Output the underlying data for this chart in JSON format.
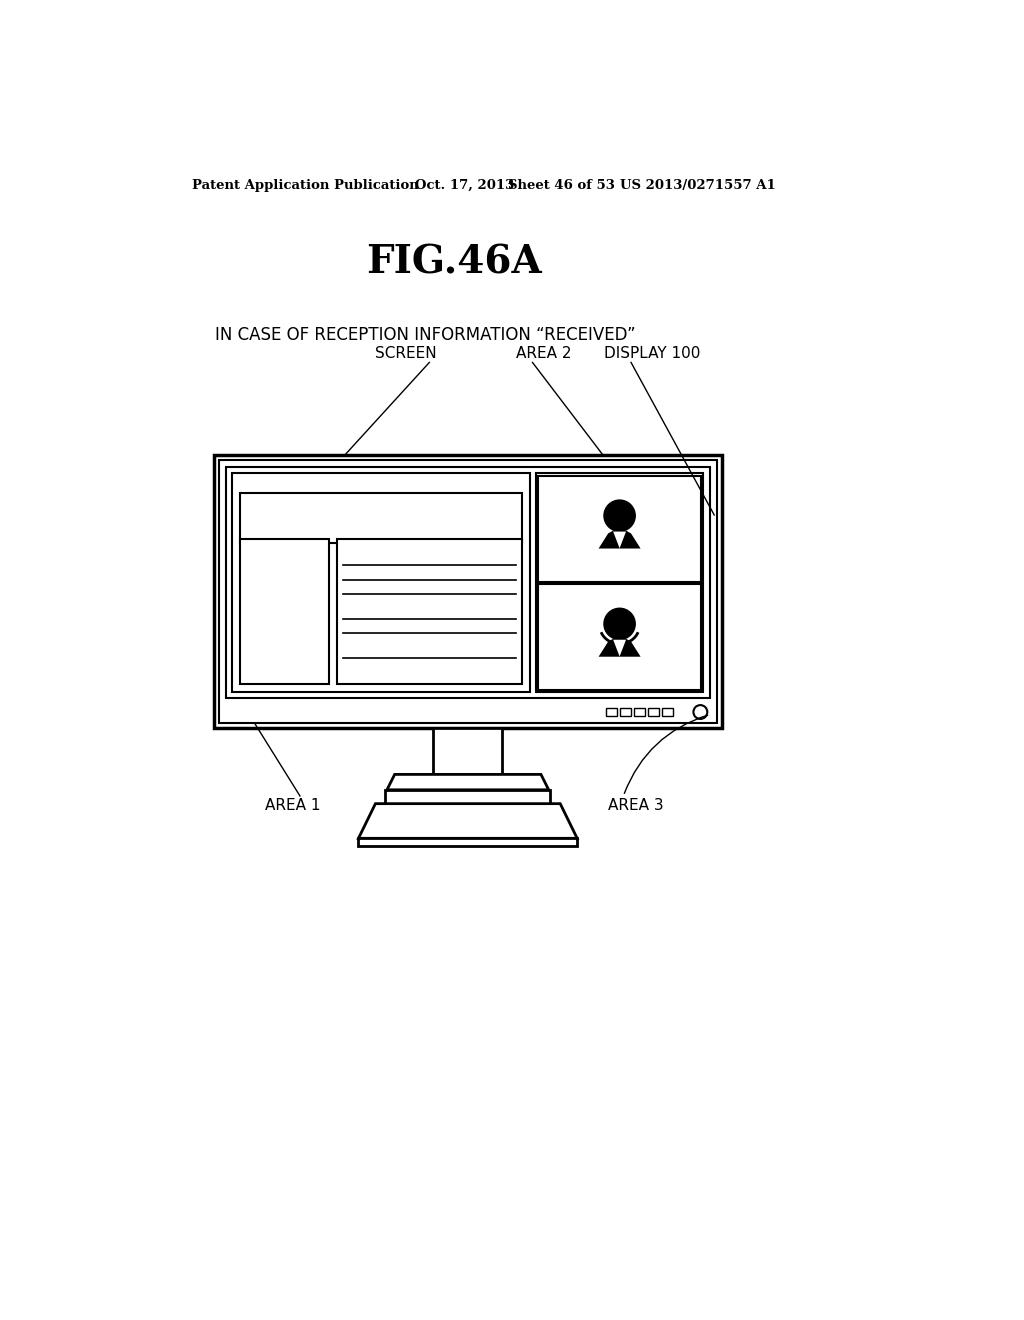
{
  "background_color": "#ffffff",
  "header_text": "Patent Application Publication",
  "header_date": "Oct. 17, 2013",
  "header_sheet": "Sheet 46 of 53",
  "header_patent": "US 2013/0271557 A1",
  "title": "FIG.46A",
  "subtitle": "IN CASE OF RECEPTION INFORMATION “RECEIVED”",
  "label_screen": "SCREEN",
  "label_area2": "AREA 2",
  "label_display": "DISPLAY 100",
  "label_area1": "AREA 1",
  "label_area3": "AREA 3"
}
